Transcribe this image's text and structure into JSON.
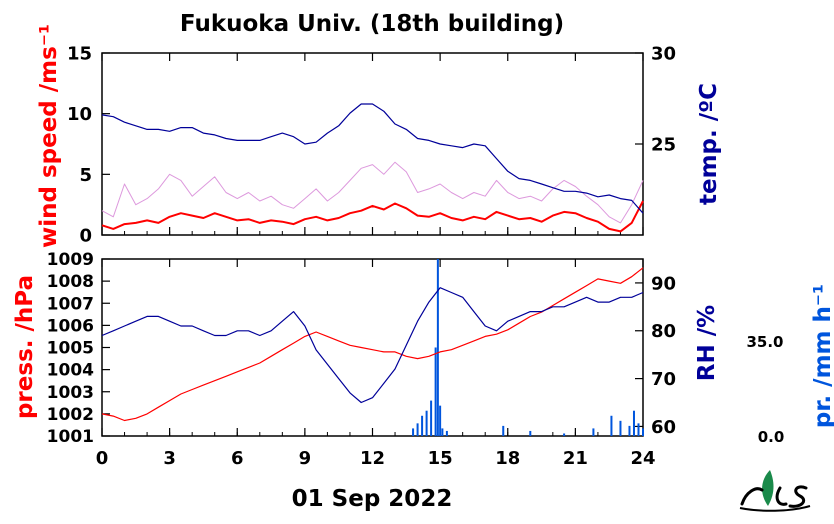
{
  "title": "Fukuoka Univ. (18th building)",
  "date_label": "01 Sep 2022",
  "logo_text": "ies",
  "colors": {
    "wind": "#ff0000",
    "wind_raw": "#dd99dd",
    "temp": "#000099",
    "pressure": "#ff0000",
    "rh": "#000099",
    "precip": "#0055dd",
    "frame": "#000000",
    "logo_green": "#1a8a4a"
  },
  "chart_data": [
    {
      "type": "line",
      "title": "Fukuoka Univ. (18th building)",
      "xlim": [
        0,
        24
      ],
      "x_ticks": [
        0,
        3,
        6,
        9,
        12,
        15,
        18,
        21,
        24
      ],
      "x_tick_labels": [
        "0",
        "3",
        "6",
        "9",
        "12",
        "15",
        "18",
        "21",
        "24"
      ],
      "left_axis": {
        "label": "wind speed /ms⁻¹",
        "lim": [
          0,
          15
        ],
        "ticks": [
          0,
          5,
          10,
          15
        ],
        "tick_labels": [
          "0",
          "5",
          "10",
          "15"
        ]
      },
      "right_axis": {
        "label": "temp. /ºC",
        "lim": [
          20,
          30
        ],
        "ticks": [
          25,
          30
        ],
        "tick_labels": [
          "25",
          "30"
        ]
      },
      "series": [
        {
          "name": "wind speed (mean)",
          "axis": "left",
          "x": [
            0,
            0.5,
            1,
            1.5,
            2,
            2.5,
            3,
            3.5,
            4,
            4.5,
            5,
            5.5,
            6,
            6.5,
            7,
            7.5,
            8,
            8.5,
            9,
            9.5,
            10,
            10.5,
            11,
            11.5,
            12,
            12.5,
            13,
            13.5,
            14,
            14.5,
            15,
            15.5,
            16,
            16.5,
            17,
            17.5,
            18,
            18.5,
            19,
            19.5,
            20,
            20.5,
            21,
            21.5,
            22,
            22.5,
            23,
            23.5,
            24
          ],
          "y": [
            0.8,
            0.5,
            0.9,
            1.0,
            1.2,
            1.0,
            1.5,
            1.8,
            1.6,
            1.4,
            1.8,
            1.5,
            1.2,
            1.3,
            1.0,
            1.2,
            1.1,
            0.9,
            1.3,
            1.5,
            1.2,
            1.4,
            1.8,
            2.0,
            2.4,
            2.1,
            2.6,
            2.2,
            1.6,
            1.5,
            1.8,
            1.4,
            1.2,
            1.5,
            1.3,
            1.9,
            1.6,
            1.3,
            1.4,
            1.1,
            1.6,
            1.9,
            1.8,
            1.4,
            1.1,
            0.5,
            0.3,
            1.0,
            2.8
          ]
        },
        {
          "name": "wind speed (1-min)",
          "axis": "left",
          "x": [
            0,
            0.5,
            1,
            1.5,
            2,
            2.5,
            3,
            3.5,
            4,
            4.5,
            5,
            5.5,
            6,
            6.5,
            7,
            7.5,
            8,
            8.5,
            9,
            9.5,
            10,
            10.5,
            11,
            11.5,
            12,
            12.5,
            13,
            13.5,
            14,
            14.5,
            15,
            15.5,
            16,
            16.5,
            17,
            17.5,
            18,
            18.5,
            19,
            19.5,
            20,
            20.5,
            21,
            21.5,
            22,
            22.5,
            23,
            23.5,
            24
          ],
          "y": [
            2.0,
            1.5,
            4.2,
            2.5,
            3.0,
            3.8,
            5.0,
            4.5,
            3.2,
            4.0,
            4.8,
            3.5,
            3.0,
            3.5,
            2.8,
            3.2,
            2.5,
            2.2,
            3.0,
            3.8,
            2.8,
            3.5,
            4.5,
            5.5,
            5.8,
            5.0,
            6.0,
            5.2,
            3.5,
            3.8,
            4.2,
            3.5,
            3.0,
            3.5,
            3.2,
            4.5,
            3.5,
            3.0,
            3.2,
            2.8,
            3.8,
            4.5,
            4.0,
            3.2,
            2.5,
            1.5,
            1.0,
            2.5,
            4.5
          ]
        },
        {
          "name": "temperature",
          "axis": "right",
          "x": [
            0,
            0.5,
            1,
            1.5,
            2,
            2.5,
            3,
            3.5,
            4,
            4.5,
            5,
            5.5,
            6,
            6.5,
            7,
            7.5,
            8,
            8.5,
            9,
            9.5,
            10,
            10.5,
            11,
            11.5,
            12,
            12.5,
            13,
            13.5,
            14,
            14.5,
            15,
            15.5,
            16,
            16.5,
            17,
            17.5,
            18,
            18.5,
            19,
            19.5,
            20,
            20.5,
            21,
            21.5,
            22,
            22.5,
            23,
            23.5,
            24
          ],
          "y": [
            26.6,
            26.5,
            26.2,
            26.0,
            25.8,
            25.8,
            25.7,
            25.9,
            25.9,
            25.6,
            25.5,
            25.3,
            25.2,
            25.2,
            25.2,
            25.4,
            25.6,
            25.4,
            25.0,
            25.1,
            25.6,
            26.0,
            26.7,
            27.2,
            27.2,
            26.8,
            26.1,
            25.8,
            25.3,
            25.2,
            25.0,
            24.9,
            24.8,
            25.0,
            24.9,
            24.2,
            23.5,
            23.1,
            23.0,
            22.8,
            22.6,
            22.4,
            22.4,
            22.3,
            22.1,
            22.2,
            22.0,
            21.9,
            21.2
          ]
        }
      ]
    },
    {
      "type": "line",
      "xlim": [
        0,
        24
      ],
      "x_ticks": [
        0,
        3,
        6,
        9,
        12,
        15,
        18,
        21,
        24
      ],
      "x_tick_labels": [
        "0",
        "3",
        "6",
        "9",
        "12",
        "15",
        "18",
        "21",
        "24"
      ],
      "left_axis": {
        "label": "press. /hPa",
        "lim": [
          1001,
          1009
        ],
        "ticks": [
          1001,
          1002,
          1003,
          1004,
          1005,
          1006,
          1007,
          1008,
          1009
        ],
        "tick_labels": [
          "1001",
          "1002",
          "1003",
          "1004",
          "1005",
          "1006",
          "1007",
          "1008",
          "1009"
        ]
      },
      "right_axis": {
        "label": "RH /%",
        "lim": [
          58,
          95
        ],
        "ticks": [
          60,
          70,
          80,
          90
        ],
        "tick_labels": [
          "60",
          "70",
          "80",
          "90"
        ]
      },
      "precip_axis": {
        "label": "pr. /mm h⁻¹",
        "lim": [
          0,
          70
        ],
        "tick_labels": [
          "35.0",
          "0.0"
        ]
      },
      "series": [
        {
          "name": "pressure",
          "axis": "left",
          "x": [
            0,
            0.5,
            1,
            1.5,
            2,
            2.5,
            3,
            3.5,
            4,
            4.5,
            5,
            5.5,
            6,
            6.5,
            7,
            7.5,
            8,
            8.5,
            9,
            9.5,
            10,
            10.5,
            11,
            11.5,
            12,
            12.5,
            13,
            13.5,
            14,
            14.5,
            15,
            15.5,
            16,
            16.5,
            17,
            17.5,
            18,
            18.5,
            19,
            19.5,
            20,
            20.5,
            21,
            21.5,
            22,
            22.5,
            23,
            23.5,
            24
          ],
          "y": [
            1002.0,
            1001.9,
            1001.7,
            1001.8,
            1002.0,
            1002.3,
            1002.6,
            1002.9,
            1003.1,
            1003.3,
            1003.5,
            1003.7,
            1003.9,
            1004.1,
            1004.3,
            1004.6,
            1004.9,
            1005.2,
            1005.5,
            1005.7,
            1005.5,
            1005.3,
            1005.1,
            1005.0,
            1004.9,
            1004.8,
            1004.8,
            1004.6,
            1004.5,
            1004.6,
            1004.8,
            1004.9,
            1005.1,
            1005.3,
            1005.5,
            1005.6,
            1005.8,
            1006.1,
            1006.4,
            1006.6,
            1006.9,
            1007.2,
            1007.5,
            1007.8,
            1008.1,
            1008.0,
            1007.9,
            1008.2,
            1008.6
          ]
        },
        {
          "name": "relative humidity",
          "axis": "right",
          "x": [
            0,
            0.5,
            1,
            1.5,
            2,
            2.5,
            3,
            3.5,
            4,
            4.5,
            5,
            5.5,
            6,
            6.5,
            7,
            7.5,
            8,
            8.5,
            9,
            9.5,
            10,
            10.5,
            11,
            11.5,
            12,
            12.5,
            13,
            13.5,
            14,
            14.5,
            15,
            15.5,
            16,
            16.5,
            17,
            17.5,
            18,
            18.5,
            19,
            19.5,
            20,
            20.5,
            21,
            21.5,
            22,
            22.5,
            23,
            23.5,
            24
          ],
          "y": [
            79,
            80,
            81,
            82,
            83,
            83,
            82,
            81,
            81,
            80,
            79,
            79,
            80,
            80,
            79,
            80,
            82,
            84,
            81,
            76,
            73,
            70,
            67,
            65,
            66,
            69,
            72,
            77,
            82,
            86,
            89,
            88,
            87,
            84,
            81,
            80,
            82,
            83,
            84,
            84,
            85,
            85,
            86,
            87,
            86,
            86,
            87,
            87,
            88
          ]
        },
        {
          "name": "precipitation",
          "axis": "precip",
          "type": "bar",
          "x": [
            13.8,
            14.0,
            14.2,
            14.4,
            14.6,
            14.8,
            14.9,
            15.0,
            15.1,
            15.3,
            17.8,
            19.0,
            20.5,
            21.8,
            22.6,
            23.0,
            23.4,
            23.6,
            23.8,
            24.0
          ],
          "y": [
            3,
            5,
            8,
            10,
            14,
            35,
            72,
            12,
            3,
            2,
            4,
            2,
            1,
            3,
            8,
            6,
            4,
            10,
            5,
            3
          ]
        }
      ]
    }
  ]
}
